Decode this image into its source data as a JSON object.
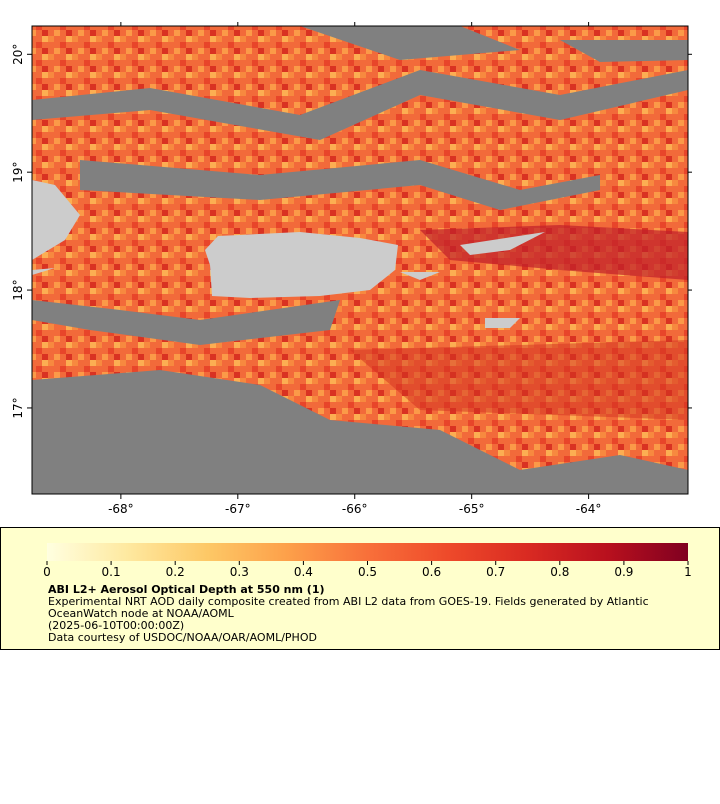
{
  "chart_data": {
    "type": "map",
    "xlim": [
      -68.76,
      -63.15
    ],
    "ylim": [
      16.27,
      20.24
    ],
    "xticks": [
      {
        "value": -68,
        "label": "-68°"
      },
      {
        "value": -67,
        "label": "-67°"
      },
      {
        "value": -66,
        "label": "-66°"
      },
      {
        "value": -65,
        "label": "-65°"
      },
      {
        "value": -64,
        "label": "-64°"
      }
    ],
    "yticks": [
      {
        "value": 17,
        "label": "17°"
      },
      {
        "value": 18,
        "label": "18°"
      },
      {
        "value": 19,
        "label": "19°"
      },
      {
        "value": 20,
        "label": "20°"
      }
    ],
    "colorbar": {
      "lim": [
        0,
        1
      ],
      "ticks": [
        0,
        0.1,
        0.2,
        0.3,
        0.4,
        0.5,
        0.6,
        0.7,
        0.8,
        0.9,
        1
      ],
      "colors": [
        "#ffffe0",
        "#fee9a0",
        "#fdc866",
        "#fda04a",
        "#f8703a",
        "#ee4a2a",
        "#d92a22",
        "#b8101e",
        "#800020"
      ]
    },
    "title": "ABI L2+ Aerosol Optical Depth at 550 nm (1)",
    "notes": [
      "Experimental NRT AOD daily composite created from ABI L2 data from GOES-19. Fields generated by Atlantic",
      "OceanWatch node at NOAA/AOML",
      "(2025-06-10T00:00:00Z)",
      "Data courtesy of USDOC/NOAA/OAR/AOML/PHOD"
    ]
  }
}
